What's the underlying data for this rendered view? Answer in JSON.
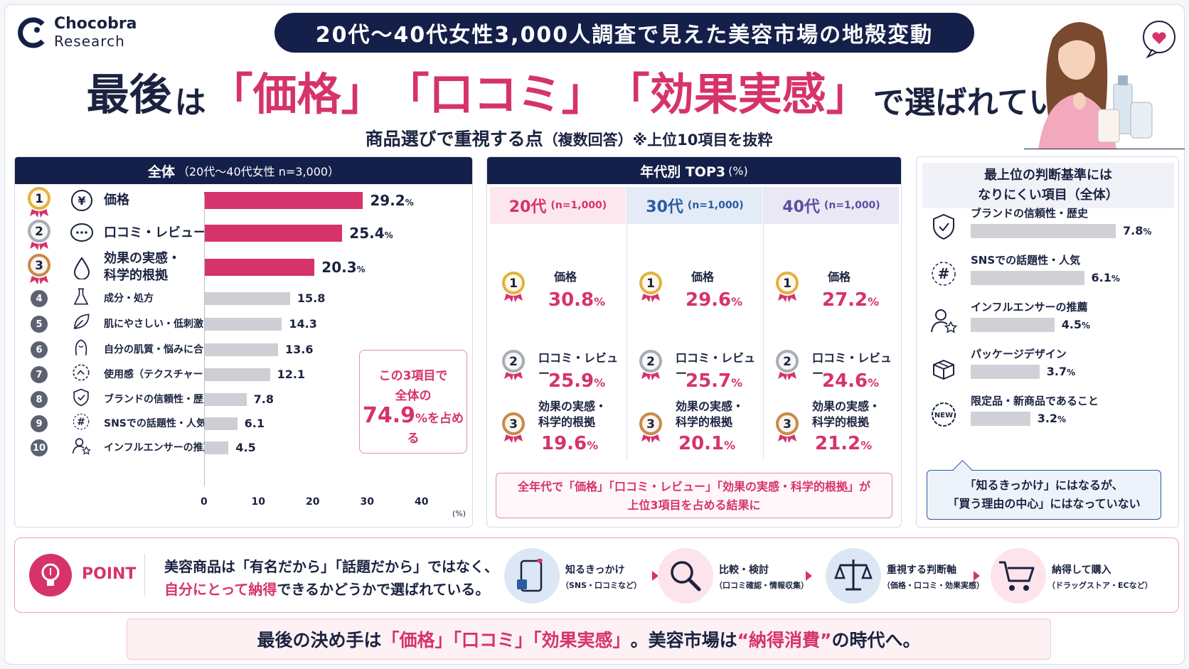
{
  "brand": {
    "name": "Chocobra",
    "sub": "Research"
  },
  "banner": "20代～40代女性3,000人調査で見えた美容市場の地殻変動",
  "headline": {
    "p1": "最後",
    "p2": "は",
    "q1": "「価格」",
    "q2": "「口コミ」",
    "q3": "「効果実感」",
    "p3": "で選ばれていた"
  },
  "subtitle": {
    "main": "商品選びで重視する点",
    "note": "（複数回答）※上位10項目を抜粋"
  },
  "panel_all": {
    "title": "全体",
    "title_note": "（20代～40代女性 n=3,000）"
  },
  "chart_data": {
    "type": "bar",
    "orientation": "horizontal",
    "categories": [
      "価格",
      "口コミ・レビュー",
      "効果の実感・科学的根拠",
      "成分・処方",
      "肌にやさしい・低刺激",
      "自分の肌質・悩みに合う",
      "使用感（テクスチャー・香りなど）",
      "ブランドの信頼性・歴史",
      "SNSでの話題性・人気",
      "インフルエンサーの推薦"
    ],
    "values": [
      29.2,
      25.4,
      20.3,
      15.8,
      14.3,
      13.6,
      12.1,
      7.8,
      6.1,
      4.5
    ],
    "value_labels": [
      "29.2",
      "25.4",
      "20.3",
      "15.8",
      "14.3",
      "13.6",
      "12.1",
      "7.8",
      "6.1",
      "4.5"
    ],
    "value_unit": "%",
    "ranks": [
      "1",
      "2",
      "3",
      "4",
      "5",
      "6",
      "7",
      "8",
      "9",
      "10"
    ],
    "xlim": [
      0,
      40
    ],
    "xticks": [
      "0",
      "10",
      "20",
      "30",
      "40"
    ],
    "xunit": "(%)",
    "highlight_color": "#d6336c",
    "other_color": "#cdcfd4"
  },
  "callout": {
    "l1": "この3項目で",
    "l2": "全体の",
    "pct": "74.9",
    "unit": "%",
    "tail": "を占める"
  },
  "panel_age": {
    "title": "年代別 TOP3",
    "title_note": "(%)",
    "groups": [
      {
        "label": "20代",
        "n": "(n=1,000)",
        "color": "#d6336c",
        "bg": "#fde7ee",
        "items": [
          {
            "name": "価格",
            "value": "30.8"
          },
          {
            "name": "口コミ・レビュー",
            "value": "25.9"
          },
          {
            "name": "効果の実感・",
            "name2": "科学的根拠",
            "value": "19.6"
          }
        ]
      },
      {
        "label": "30代",
        "n": "(n=1,000)",
        "color": "#2c5aa0",
        "bg": "#e3ebf7",
        "items": [
          {
            "name": "価格",
            "value": "29.6"
          },
          {
            "name": "口コミ・レビュー",
            "value": "25.7"
          },
          {
            "name": "効果の実感・",
            "name2": "科学的根拠",
            "value": "20.1"
          }
        ]
      },
      {
        "label": "40代",
        "n": "(n=1,000)",
        "color": "#5b4fa0",
        "bg": "#ebe8f5",
        "items": [
          {
            "name": "価格",
            "value": "27.2"
          },
          {
            "name": "口コミ・レビュー",
            "value": "24.6"
          },
          {
            "name": "効果の実感・",
            "name2": "科学的根拠",
            "value": "21.2"
          }
        ]
      }
    ],
    "note_l1": "全年代で「価格」「口コミ・レビュー」「効果の実感・科学的根拠」が",
    "note_l2": "上位3項目を占める結果に"
  },
  "panel_low": {
    "title_l1": "最上位の判断基準には",
    "title_l2": "なりにくい項目（全体）",
    "items": [
      {
        "name": "ブランドの信頼性・歴史",
        "value": 7.8,
        "label": "7.8",
        "icon": "shield-check-icon"
      },
      {
        "name": "SNSでの話題性・人気",
        "value": 6.1,
        "label": "6.1",
        "icon": "hashtag-icon"
      },
      {
        "name": "インフルエンサーの推薦",
        "value": 4.5,
        "label": "4.5",
        "icon": "person-star-icon"
      },
      {
        "name": "パッケージデザイン",
        "value": 3.7,
        "label": "3.7",
        "icon": "gift-box-icon"
      },
      {
        "name": "限定品・新商品であること",
        "value": 3.2,
        "label": "3.2",
        "icon": "new-badge-icon"
      }
    ],
    "unit": "%",
    "badge_new": "NEW",
    "note_l1": "「知るきっかけ」にはなるが、",
    "note_l2": "「買う理由の中心」にはなっていない"
  },
  "point": {
    "label": "POINT",
    "text_l1": "美容商品は「有名だから」「話題だから」ではなく、",
    "text_hl": "自分にとって納得",
    "text_l2_tail": "できるかどうかで選ばれている。",
    "steps": [
      {
        "title": "知るきっかけ",
        "sub": "（SNS・口コミなど）",
        "icon": "phone-heart-icon"
      },
      {
        "title": "比較・検討",
        "sub": "（口コミ確認・情報収集）",
        "icon": "magnifier-icon"
      },
      {
        "title": "重視する判断軸",
        "sub": "（価格・口コミ・効果実感）",
        "icon": "scale-icon"
      },
      {
        "title": "納得して購入",
        "sub": "（ドラッグストア・ECなど）",
        "icon": "cart-icon"
      }
    ]
  },
  "final": {
    "a": "最後の決め手は",
    "b": "「価格」「口コミ」「効果実感」",
    "c": "。美容市場は",
    "d": "“納得消費”",
    "e": "の時代へ。"
  },
  "colors": {
    "navy": "#14204a",
    "pink": "#d6336c",
    "gold": "#e3b23c",
    "silver": "#a9acb4",
    "bronze": "#c88a4a"
  }
}
